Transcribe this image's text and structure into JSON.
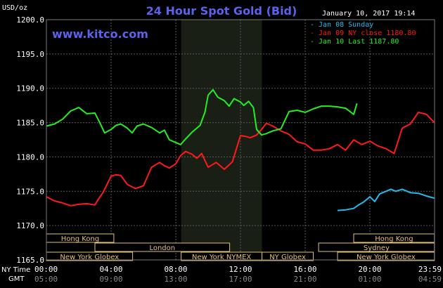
{
  "chart_data": {
    "type": "line",
    "title": "24 Hour Spot Gold (Bid)",
    "website": "www.kitco.com",
    "timestamp": "January 10, 2017 19:14",
    "y_unit": "USD/oz",
    "ylim": [
      1165.0,
      1200.0
    ],
    "y_ticks": [
      1165.0,
      1170.0,
      1175.0,
      1180.0,
      1185.0,
      1190.0,
      1195.0,
      1200.0
    ],
    "y_tick_labels": [
      "1165.0",
      "1170.0",
      "1175.0",
      "1180.0",
      "1185.0",
      "1190.0",
      "1195.0",
      "1200.0"
    ],
    "x_range_hours": [
      0,
      24
    ],
    "x_ticks_hours": [
      0,
      4,
      8,
      12,
      16,
      20,
      24
    ],
    "x_row_label_top": "NY Time",
    "x_row_label_bottom": "GMT",
    "x_tick_labels_ny": [
      "00:00",
      "04:00",
      "08:00",
      "12:00",
      "16:00",
      "20:00",
      "23:59"
    ],
    "x_tick_labels_gmt": [
      "05:00",
      "09:00",
      "13:00",
      "17:00",
      "21:00",
      "01:00",
      "04:59"
    ],
    "grid": true,
    "legend_position": "top-right",
    "shaded_region_hours": [
      8.33,
      13.33
    ],
    "series": [
      {
        "name": "Jan 08 Sunday",
        "label": "Jan 08 Sunday",
        "color": "#22bbee",
        "x": [
          18,
          18.5,
          19,
          19.3,
          19.6,
          20,
          20.3,
          20.6,
          21,
          21.3,
          21.6,
          22,
          22.5,
          23,
          23.5,
          23.99
        ],
        "y": [
          1172.2,
          1172.3,
          1172.5,
          1173.0,
          1173.4,
          1174.2,
          1173.5,
          1174.6,
          1175.0,
          1175.3,
          1175.0,
          1175.3,
          1174.8,
          1174.7,
          1174.3,
          1174.0
        ]
      },
      {
        "name": "Jan 09 NY close 1180.80",
        "label": "Jan 09 NY close 1180.80",
        "color": "#ff1a1a",
        "x": [
          0,
          0.5,
          1,
          1.5,
          2,
          2.5,
          3,
          3.2,
          3.5,
          4,
          4.3,
          4.6,
          5,
          5.5,
          6,
          6.5,
          7,
          7.3,
          7.6,
          8,
          8.3,
          8.6,
          9,
          9.3,
          9.6,
          10,
          10.5,
          11,
          11.5,
          12,
          12.3,
          12.6,
          13,
          13.3,
          13.6,
          14,
          14.5,
          15,
          15.5,
          16,
          16.5,
          17,
          17.5,
          18,
          18.5,
          19,
          19.5,
          20,
          20.5,
          21,
          21.5,
          22,
          22.5,
          23,
          23.5,
          23.99
        ],
        "y": [
          1174.2,
          1173.6,
          1173.3,
          1172.9,
          1173.1,
          1173.2,
          1173.0,
          1173.8,
          1174.8,
          1177.2,
          1177.4,
          1177.3,
          1176.0,
          1175.4,
          1175.8,
          1178.5,
          1179.2,
          1178.7,
          1178.4,
          1179.0,
          1180.2,
          1180.8,
          1180.4,
          1179.8,
          1180.5,
          1178.5,
          1179.2,
          1178.2,
          1179.3,
          1183.1,
          1183.0,
          1182.8,
          1183.2,
          1184.0,
          1184.9,
          1184.5,
          1183.8,
          1183.3,
          1182.2,
          1181.9,
          1181.0,
          1181.0,
          1181.2,
          1181.8,
          1181.0,
          1182.5,
          1181.8,
          1182.3,
          1181.6,
          1181.2,
          1180.5,
          1184.2,
          1184.8,
          1186.5,
          1186.2,
          1185.0
        ]
      },
      {
        "name": "Jan 10 Last 1187.80",
        "label": "Jan 10 Last 1187.80",
        "color": "#22ee22",
        "x": [
          0,
          0.5,
          1,
          1.5,
          2,
          2.5,
          3,
          3.3,
          3.6,
          4,
          4.3,
          4.6,
          5,
          5.3,
          5.6,
          6,
          6.5,
          7,
          7.3,
          7.6,
          8,
          8.3,
          8.6,
          9,
          9.5,
          9.8,
          10,
          10.3,
          10.6,
          11,
          11.3,
          11.6,
          12,
          12.2,
          12.5,
          12.8,
          13,
          13.3,
          13.6,
          14,
          14.5,
          15,
          15.5,
          16,
          16.5,
          17,
          17.5,
          18,
          18.5,
          19,
          19.2
        ],
        "y": [
          1184.5,
          1184.8,
          1185.5,
          1186.7,
          1187.2,
          1186.3,
          1186.4,
          1185.0,
          1183.5,
          1184.0,
          1184.6,
          1184.8,
          1184.2,
          1183.5,
          1184.5,
          1184.8,
          1184.3,
          1183.5,
          1183.9,
          1182.5,
          1182.1,
          1181.8,
          1182.6,
          1183.6,
          1184.6,
          1186.5,
          1189.0,
          1189.8,
          1188.7,
          1188.2,
          1187.4,
          1188.5,
          1188.0,
          1187.5,
          1188.1,
          1187.2,
          1184.0,
          1183.2,
          1183.4,
          1183.8,
          1184.1,
          1186.6,
          1186.8,
          1186.5,
          1187.0,
          1187.4,
          1187.4,
          1187.3,
          1187.1,
          1186.2,
          1187.8
        ]
      }
    ],
    "sessions": [
      {
        "label": "Hong Kong",
        "row": 0,
        "start": 0,
        "end": 4.17
      },
      {
        "label": "Hong Kong",
        "row": 0,
        "start": 19.0,
        "end": 23.99
      },
      {
        "label": "London",
        "row": 1,
        "start": 3.0,
        "end": 11.33
      },
      {
        "label": "Sydney",
        "row": 1,
        "start": 16.83,
        "end": 23.99
      },
      {
        "label": "New York Globex",
        "row": 2,
        "start": 0,
        "end": 5.33
      },
      {
        "label": "New York NYMEX",
        "row": 2,
        "start": 8.33,
        "end": 13.33
      },
      {
        "label": "NY Globex",
        "row": 2,
        "start": 13.33,
        "end": 16.5
      },
      {
        "label": "New York Globex",
        "row": 2,
        "start": 18.0,
        "end": 23.99
      }
    ]
  }
}
